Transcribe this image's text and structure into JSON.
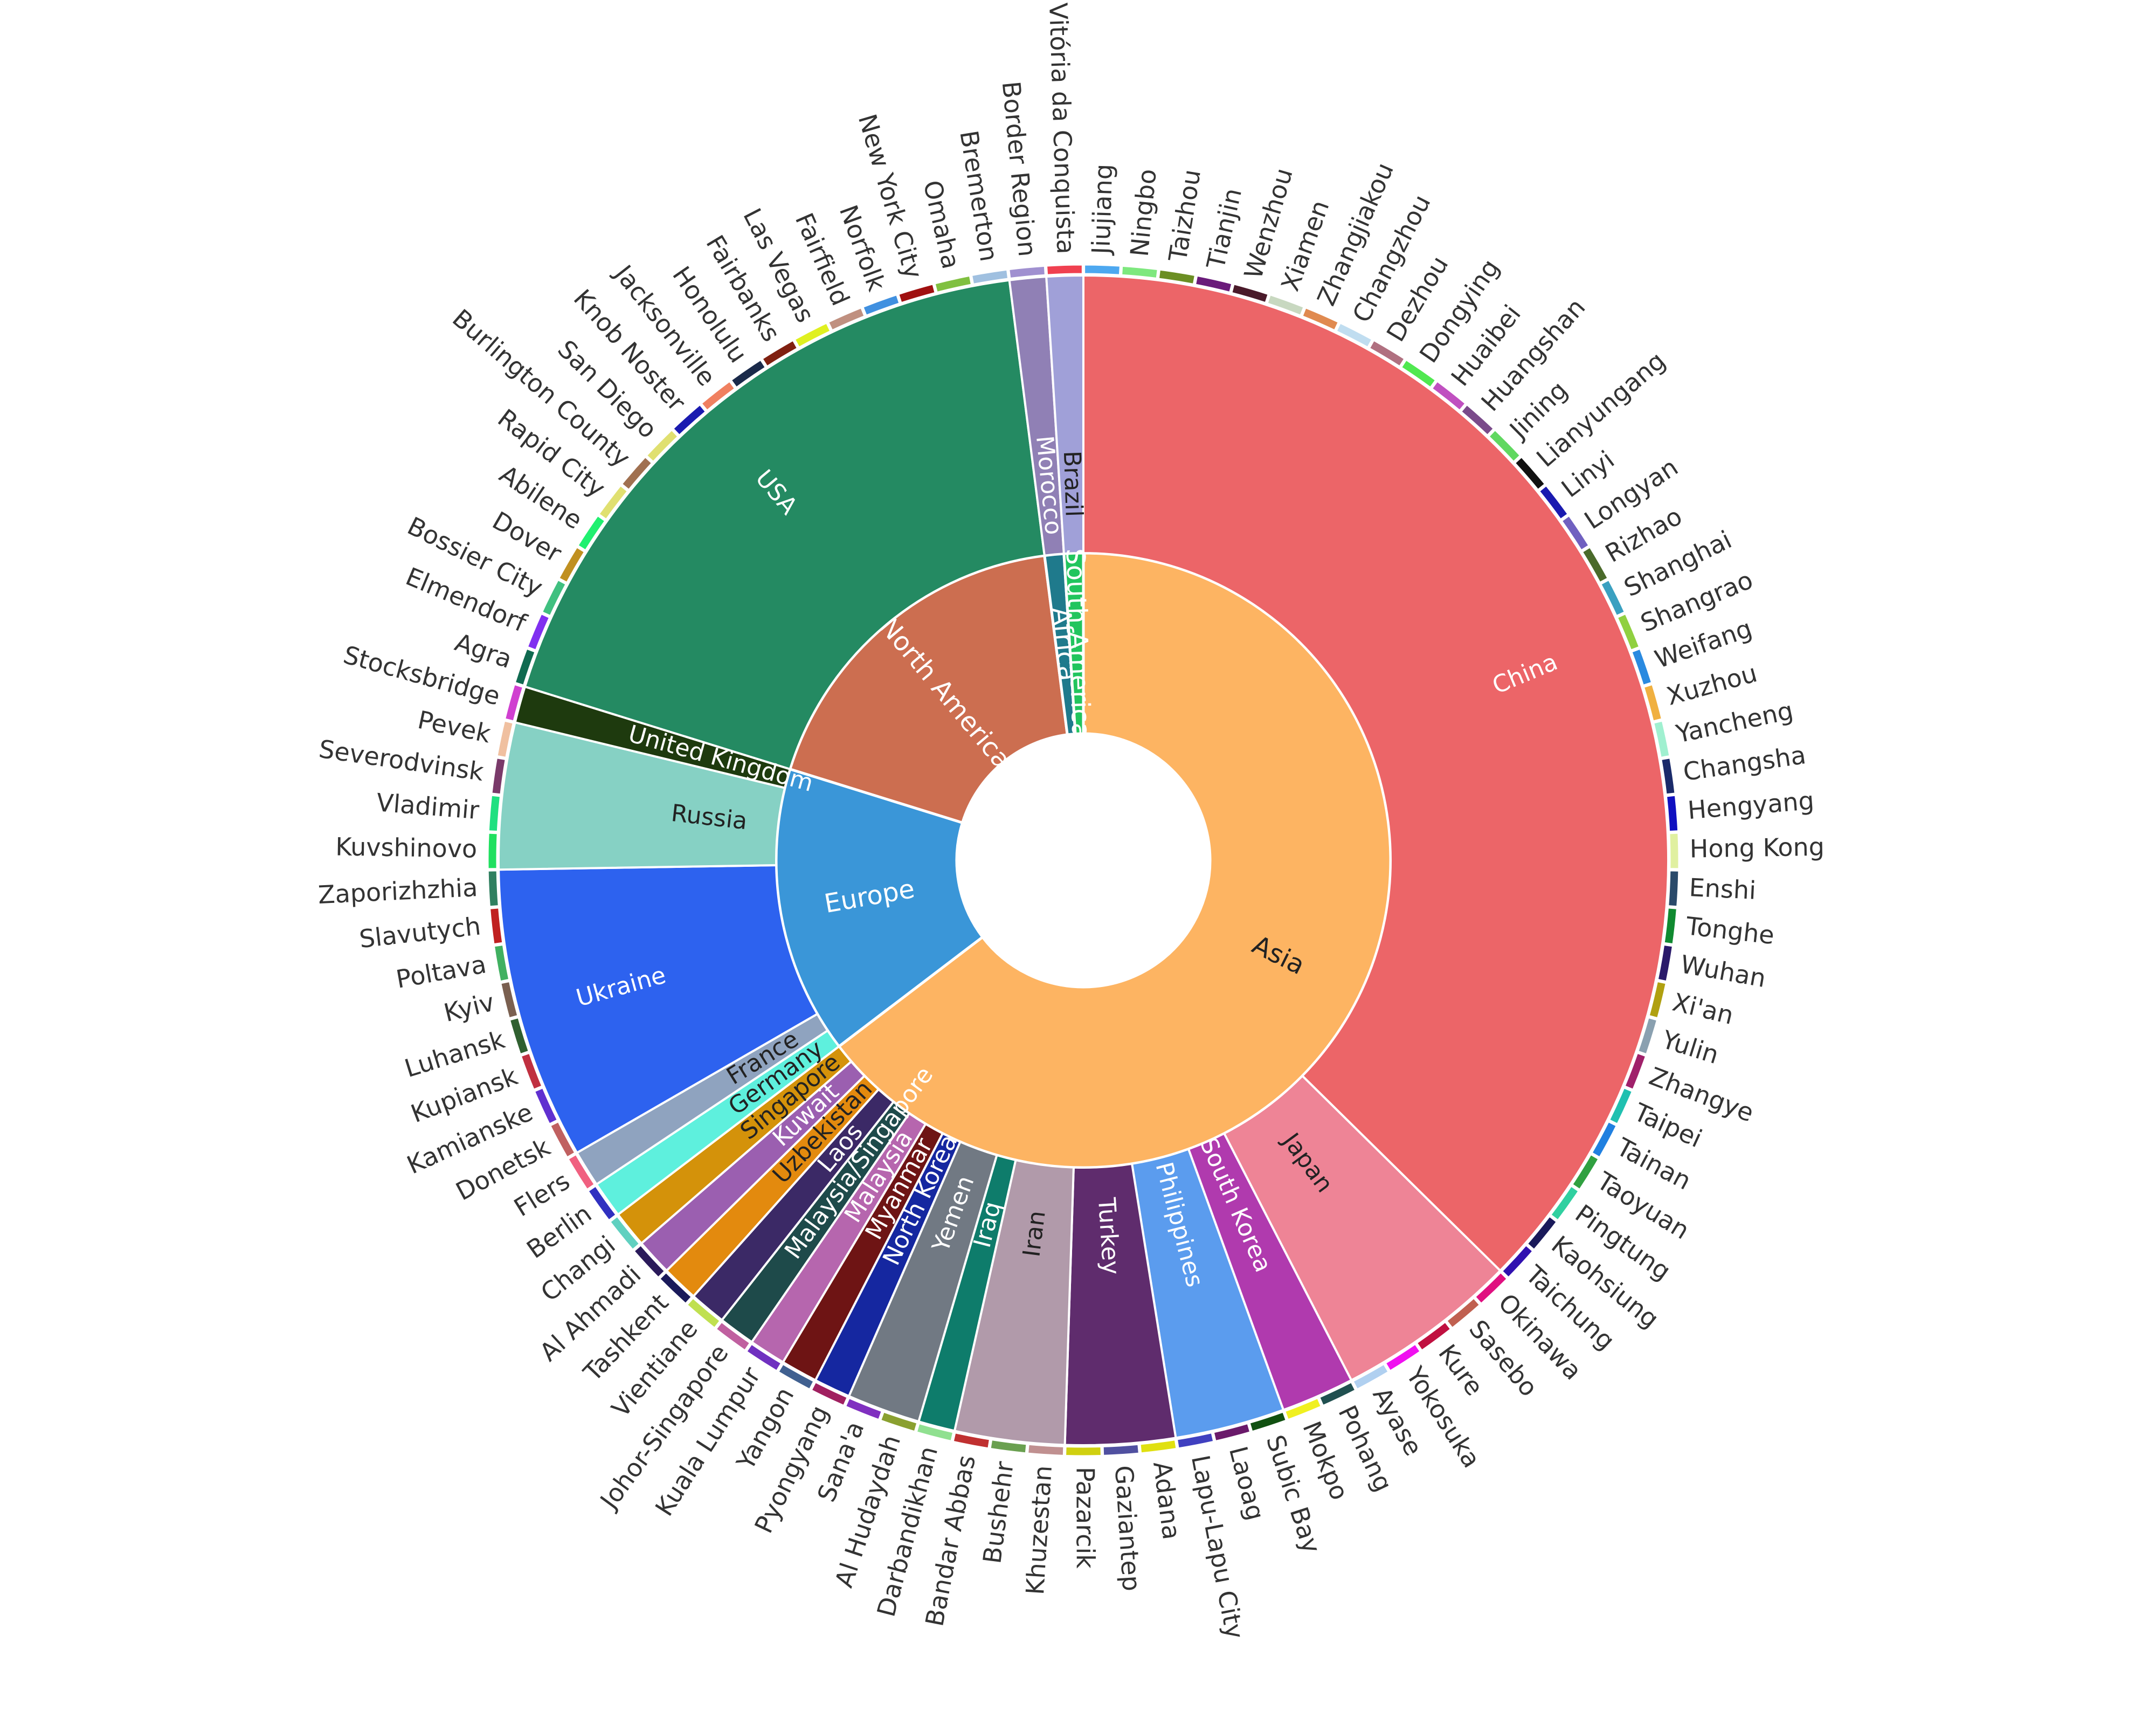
{
  "chart_data": {
    "type": "sunburst",
    "title": "",
    "levels": [
      "continent",
      "country",
      "city"
    ],
    "label_colors": {
      "light_text": "#ffffff",
      "dark_text": "#222222",
      "city_text": "#333333"
    },
    "continents": [
      {
        "name": "Asia",
        "color": "#FDB462",
        "countries": [
          {
            "name": "China",
            "color": "#EC6568",
            "cities": [
              "Jiujiang",
              "Ningbo",
              "Taizhou",
              "Tianjin",
              "Wenzhou",
              "Xiamen",
              "Zhangjiakou",
              "Changzhou",
              "Dezhou",
              "Dongying",
              "Huaibei",
              "Huangshan",
              "Jining",
              "Lianyungang",
              "Linyi",
              "Longyan",
              "Rizhao",
              "Shanghai",
              "Shangrao",
              "Weifang",
              "Xuzhou",
              "Yancheng",
              "Changsha",
              "Hengyang",
              "Hong Kong",
              "Enshi",
              "Tonghe",
              "Wuhan",
              "Xi'an",
              "Yulin",
              "Zhangye",
              "Taipei",
              "Tainan",
              "Taoyuan",
              "Pingtung",
              "Kaohsiung",
              "Taichung"
            ]
          },
          {
            "name": "Japan",
            "color": "#EE8496",
            "cities": [
              "Okinawa",
              "Sasebo",
              "Kure",
              "Yokosuka",
              "Ayase"
            ]
          },
          {
            "name": "South Korea",
            "color": "#B03AAE",
            "cities": [
              "Pohang",
              "Mokpo"
            ]
          },
          {
            "name": "Philippines",
            "color": "#5B9CEE",
            "cities": [
              "Subic Bay",
              "Laoag",
              "Lapu-Lapu City"
            ]
          },
          {
            "name": "Turkey",
            "color": "#5F2C6D",
            "cities": [
              "Adana",
              "Gaziantep",
              "Pazarcik"
            ]
          },
          {
            "name": "Iran",
            "color": "#B19AAA",
            "cities": [
              "Khuzestan",
              "Bushehr",
              "Bandar Abbas"
            ]
          },
          {
            "name": "Iraq",
            "color": "#0E7C6B",
            "cities": [
              "Darbandikhan"
            ]
          },
          {
            "name": "Yemen",
            "color": "#717983",
            "cities": [
              "Al Hudaydah",
              "Sana'a"
            ]
          },
          {
            "name": "North Korea",
            "color": "#1527A0",
            "cities": [
              "Pyongyang"
            ]
          },
          {
            "name": "Myanmar",
            "color": "#6E1414",
            "cities": [
              "Yangon"
            ]
          },
          {
            "name": "Malaysia",
            "color": "#B666AE",
            "cities": [
              "Kuala Lumpur"
            ]
          },
          {
            "name": "Malaysia/Singapore",
            "color": "#1E4A4A",
            "cities": [
              "Johor-Singapore"
            ]
          },
          {
            "name": "Laos",
            "color": "#3B2966",
            "cities": [
              "Vientiane"
            ]
          },
          {
            "name": "Uzbekistan",
            "color": "#E38A0E",
            "cities": [
              "Tashkent"
            ]
          },
          {
            "name": "Kuwait",
            "color": "#9B5FB0",
            "cities": [
              "Al Ahmadi"
            ]
          },
          {
            "name": "Singapore",
            "color": "#D4920A",
            "cities": [
              "Changi"
            ]
          }
        ]
      },
      {
        "name": "Europe",
        "color": "#3A96D8",
        "countries": [
          {
            "name": "Germany",
            "color": "#5EF0DD",
            "cities": [
              "Berlin"
            ]
          },
          {
            "name": "France",
            "color": "#8FA3BF",
            "cities": [
              "Flers"
            ]
          },
          {
            "name": "Ukraine",
            "color": "#2D62EF",
            "cities": [
              "Donetsk",
              "Kamianske",
              "Kupiansk",
              "Luhansk",
              "Kyiv",
              "Poltava",
              "Slavutych",
              "Zaporizhzhia"
            ]
          },
          {
            "name": "Russia",
            "color": "#86D1C4",
            "cities": [
              "Kuvshinovo",
              "Vladimir",
              "Severodvinsk",
              "Pevek"
            ]
          },
          {
            "name": "United Kingdom",
            "color": "#1E3A0E",
            "cities": [
              "Stocksbridge"
            ]
          }
        ]
      },
      {
        "name": "North America",
        "color": "#CC6E50",
        "countries": [
          {
            "name": "USA",
            "color": "#248A62",
            "cities": [
              "Agra",
              "Elmendorf",
              "Bossier City",
              "Dover",
              "Abilene",
              "Rapid City",
              "Burlington County",
              "San Diego",
              "Knob Noster",
              "Jacksonville",
              "Honolulu",
              "Fairbanks",
              "Las Vegas",
              "Fairfield",
              "Norfolk",
              "New York City",
              "Omaha",
              "Bremerton"
            ]
          }
        ]
      },
      {
        "name": "Africa",
        "color": "#1F7A8C",
        "countries": [
          {
            "name": "Morocco",
            "color": "#9080B5",
            "cities": [
              "Border Region"
            ]
          }
        ]
      },
      {
        "name": "South America",
        "color": "#22C55E",
        "countries": [
          {
            "name": "Brazil",
            "color": "#A0A0D8",
            "cities": [
              "Vitória da Conquista"
            ]
          }
        ]
      }
    ],
    "city_colors": [
      "#4DA8F0",
      "#7EE87E",
      "#6B8E23",
      "#6A1B7A",
      "#4A1A2A",
      "#C8D8C0",
      "#E08A50",
      "#C0DDF0",
      "#B07080",
      "#50E850",
      "#C050C0",
      "#7A4A8A",
      "#60D860",
      "#111111",
      "#1A1AB0",
      "#7060C0",
      "#4A6A2A",
      "#3AA0C0",
      "#90D040",
      "#2A8AE0",
      "#F0B040",
      "#A0F0D0",
      "#1A2A6A",
      "#1010C0",
      "#E0F0A0",
      "#2A4A6A",
      "#108A30",
      "#2A1A6A",
      "#B0A010",
      "#8AA0B0",
      "#A0206A",
      "#20C0B0",
      "#2080E0",
      "#30A040",
      "#30D0A0",
      "#1A1A5A",
      "#3010B0",
      "#E01080",
      "#C06050",
      "#C01040",
      "#F010F0",
      "#B0D0F0",
      "#205050",
      "#F0F020",
      "#105010",
      "#6A1A6A",
      "#4040C0",
      "#E0E010",
      "#5050A0",
      "#D0D010",
      "#C09090",
      "#6AA050",
      "#C03030",
      "#90E090",
      "#8AA030",
      "#8030C0",
      "#A02060",
      "#406090",
      "#7030C0",
      "#C060A0",
      "#C0E050",
      "#1A1A5A",
      "#2A1A5A",
      "#60D0C0",
      "#3030C0",
      "#F06080",
      "#C06060",
      "#6030D0",
      "#C03040",
      "#306030",
      "#7A6050",
      "#40B060",
      "#C02020",
      "#308060",
      "#20E060",
      "#20E080",
      "#7A3A6A",
      "#F0C0A0",
      "#D040D0",
      "#106A50",
      "#8030F0",
      "#40C080",
      "#C09020",
      "#20F070",
      "#E0E070",
      "#A07050",
      "#E0E070",
      "#1A1AB0",
      "#F08060",
      "#1A2A4A",
      "#802010",
      "#E0F020",
      "#C09080",
      "#4090E0",
      "#A01010",
      "#80C040",
      "#A0C0E0",
      "#A090D0",
      "#F04050"
    ]
  }
}
